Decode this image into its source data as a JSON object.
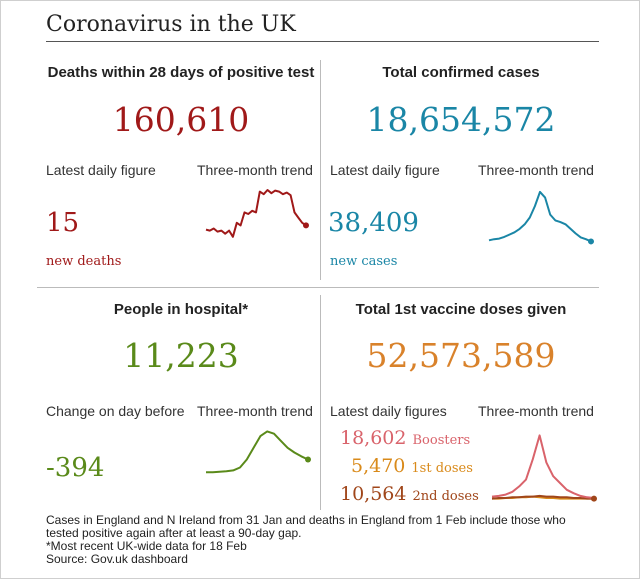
{
  "title": "Coronavirus in the UK",
  "colors": {
    "deaths": "#a01919",
    "cases": "#1a86a6",
    "hospital": "#5a8a1a",
    "vaccine": "#d9822b",
    "boosters": "#d9636b",
    "first_doses": "#d98a1a",
    "second_doses": "#a0461a"
  },
  "deaths": {
    "heading": "Deaths within 28 days of positive test",
    "total": "160,610",
    "latest_label": "Latest daily figure",
    "trend_label": "Three-month trend",
    "latest_value": "15",
    "latest_unit": "new deaths",
    "trend": [
      0.22,
      0.2,
      0.24,
      0.18,
      0.2,
      0.14,
      0.2,
      0.08,
      0.35,
      0.3,
      0.55,
      0.52,
      0.58,
      0.55,
      0.95,
      0.9,
      0.98,
      0.92,
      0.97,
      0.95,
      0.9,
      0.93,
      0.88,
      0.55,
      0.45,
      0.35,
      0.3
    ]
  },
  "cases": {
    "heading": "Total confirmed cases",
    "total": "18,654,572",
    "latest_label": "Latest daily figure",
    "trend_label": "Three-month trend",
    "latest_value": "38,409",
    "latest_unit": "new cases",
    "trend": [
      0.1,
      0.12,
      0.13,
      0.16,
      0.2,
      0.24,
      0.3,
      0.38,
      0.5,
      0.7,
      0.95,
      0.85,
      0.55,
      0.45,
      0.42,
      0.38,
      0.3,
      0.22,
      0.15,
      0.12,
      0.08
    ]
  },
  "hospital": {
    "heading": "People in hospital*",
    "total": "11,223",
    "latest_label": "Change on day before",
    "trend_label": "Three-month trend",
    "latest_value": "-394",
    "trend": [
      0.08,
      0.08,
      0.09,
      0.1,
      0.12,
      0.18,
      0.35,
      0.6,
      0.85,
      0.95,
      0.9,
      0.75,
      0.6,
      0.5,
      0.42,
      0.35
    ]
  },
  "vaccine": {
    "heading": "Total 1st vaccine doses given",
    "total": "52,573,589",
    "latest_label": "Latest daily figures",
    "trend_label": "Three-month trend",
    "rows": [
      {
        "value": "18,602",
        "label": "Boosters"
      },
      {
        "value": "5,470",
        "label": "1st doses"
      },
      {
        "value": "10,564",
        "label": "2nd doses"
      }
    ],
    "boosters_trend": [
      0.05,
      0.06,
      0.08,
      0.12,
      0.2,
      0.3,
      0.6,
      0.95,
      0.55,
      0.35,
      0.25,
      0.15,
      0.1,
      0.06,
      0.04,
      0.03
    ],
    "first_trend": [
      0.02,
      0.02,
      0.03,
      0.03,
      0.04,
      0.04,
      0.05,
      0.04,
      0.03,
      0.03,
      0.02,
      0.02,
      0.02,
      0.02,
      0.02,
      0.02
    ],
    "second_trend": [
      0.02,
      0.03,
      0.03,
      0.04,
      0.04,
      0.05,
      0.05,
      0.06,
      0.05,
      0.05,
      0.04,
      0.04,
      0.03,
      0.03,
      0.02,
      0.02
    ]
  },
  "footer": {
    "line1": "Cases in England and N Ireland from 31 Jan and deaths in England from 1 Feb include those who",
    "line2": "tested positive again after at least a 90-day gap.",
    "line3": "*Most recent UK-wide data for 18 Feb",
    "line4": "Source: Gov.uk dashboard"
  }
}
